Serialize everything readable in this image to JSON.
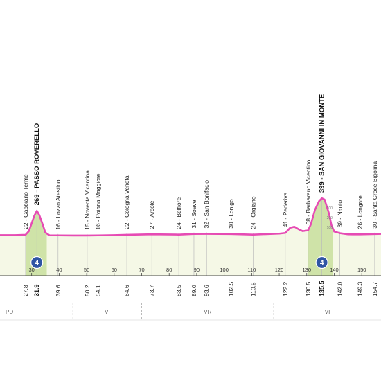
{
  "chart_data": {
    "type": "area",
    "title": "",
    "xlabel": "",
    "ylabel": "",
    "xlim": [
      18.5,
      157
    ],
    "ylim": [
      0,
      420
    ],
    "x_ticks": [
      30,
      40,
      50,
      60,
      70,
      80,
      90,
      100,
      110,
      120,
      130,
      140,
      150
    ],
    "altitude_scale_labels": [
      "300",
      "200",
      "100"
    ],
    "colors": {
      "profile_line": "#e64bb4",
      "area_fill": "#f5f8e6",
      "climb_fill": "#cfe3a8",
      "km_line": "#bbbbbb",
      "climb_badge": "#2f55a4"
    },
    "series": [
      {
        "points": [
          [
            18.5,
            18
          ],
          [
            24,
            18
          ],
          [
            27.8,
            22
          ],
          [
            29,
            60
          ],
          [
            30,
            140
          ],
          [
            31,
            220
          ],
          [
            31.9,
            269
          ],
          [
            32.8,
            225
          ],
          [
            34,
            130
          ],
          [
            35,
            45
          ],
          [
            36.5,
            16
          ],
          [
            39.6,
            16
          ],
          [
            45,
            15
          ],
          [
            50.2,
            15
          ],
          [
            54.1,
            16
          ],
          [
            60,
            18
          ],
          [
            64.6,
            22
          ],
          [
            73.7,
            27
          ],
          [
            83.5,
            24
          ],
          [
            89,
            31
          ],
          [
            93.6,
            32
          ],
          [
            102.5,
            30
          ],
          [
            110.5,
            24
          ],
          [
            116,
            30
          ],
          [
            120,
            34
          ],
          [
            122.2,
            41
          ],
          [
            124,
            95
          ],
          [
            125.5,
            105
          ],
          [
            127,
            80
          ],
          [
            128.5,
            60
          ],
          [
            130.5,
            68
          ],
          [
            131.5,
            130
          ],
          [
            133,
            280
          ],
          [
            134.5,
            370
          ],
          [
            135.5,
            399
          ],
          [
            136.5,
            385
          ],
          [
            138,
            250
          ],
          [
            139,
            120
          ],
          [
            140,
            55
          ],
          [
            142,
            39
          ],
          [
            145,
            27
          ],
          [
            149.3,
            26
          ],
          [
            152,
            28
          ],
          [
            154.7,
            30
          ],
          [
            157,
            32
          ]
        ]
      }
    ],
    "places": [
      {
        "km": 27.8,
        "label": "22 - Gabbiano Terme",
        "climb": false
      },
      {
        "km": 31.9,
        "label": "269 - PASSO ROVERELLO",
        "climb": true
      },
      {
        "km": 39.6,
        "label": "16 - Lozzo Atestino",
        "climb": false
      },
      {
        "km": 50.2,
        "label": "15 - Noventa Vicentina",
        "climb": false
      },
      {
        "km": 54.1,
        "label": "16 - Poiana Maggiore",
        "climb": false
      },
      {
        "km": 64.6,
        "label": "22 - Cologna Veneta",
        "climb": false
      },
      {
        "km": 73.7,
        "label": "27 - Arcole",
        "climb": false
      },
      {
        "km": 83.5,
        "label": "24 - Belfiore",
        "climb": false
      },
      {
        "km": 89.0,
        "label": "31 - Soave",
        "climb": false
      },
      {
        "km": 93.6,
        "label": "32 - San Bonifacio",
        "climb": false
      },
      {
        "km": 102.5,
        "label": "30 - Lonigo",
        "climb": false
      },
      {
        "km": 110.5,
        "label": "24 - Orgiano",
        "climb": false
      },
      {
        "km": 122.2,
        "label": "41 - Pederiva",
        "climb": false
      },
      {
        "km": 130.5,
        "label": "68 - Barbarano Vicentino",
        "climb": false
      },
      {
        "km": 135.5,
        "label": "399 - SAN GIOVANNI IN MONTE",
        "climb": true
      },
      {
        "km": 142.0,
        "label": "39 - Nanto",
        "climb": false
      },
      {
        "km": 149.3,
        "label": "26 - Longare",
        "climb": false
      },
      {
        "km": 154.7,
        "label": "30 - Santa Croce Bigolina",
        "climb": false
      }
    ],
    "distance_labels": [
      {
        "km": 27.8,
        "text": "27.8",
        "bold": false
      },
      {
        "km": 31.9,
        "text": "31.9",
        "bold": true
      },
      {
        "km": 39.6,
        "text": "39.6",
        "bold": false
      },
      {
        "km": 50.2,
        "text": "50.2",
        "bold": false
      },
      {
        "km": 54.1,
        "text": "54.1",
        "bold": false
      },
      {
        "km": 64.6,
        "text": "64.6",
        "bold": false
      },
      {
        "km": 73.7,
        "text": "73.7",
        "bold": false
      },
      {
        "km": 83.5,
        "text": "83.5",
        "bold": false
      },
      {
        "km": 89.0,
        "text": "89.0",
        "bold": false
      },
      {
        "km": 93.6,
        "text": "93.6",
        "bold": false
      },
      {
        "km": 102.5,
        "text": "102.5",
        "bold": false
      },
      {
        "km": 110.5,
        "text": "110.5",
        "bold": false
      },
      {
        "km": 122.2,
        "text": "122.2",
        "bold": false
      },
      {
        "km": 130.5,
        "text": "130.5",
        "bold": false
      },
      {
        "km": 135.5,
        "text": "135.5",
        "bold": true
      },
      {
        "km": 142.0,
        "text": "142.0",
        "bold": false
      },
      {
        "km": 149.3,
        "text": "149.3",
        "bold": false
      },
      {
        "km": 154.7,
        "text": "154.7",
        "bold": false
      }
    ],
    "climb_badges": [
      {
        "km": 31.9,
        "category": "4"
      },
      {
        "km": 135.5,
        "category": "4"
      }
    ],
    "climb_zones": [
      [
        27.8,
        35.5
      ],
      [
        130.5,
        139.5
      ]
    ],
    "provinces": [
      {
        "code": "PD",
        "start": 18.5,
        "end": 45
      },
      {
        "code": "VI",
        "start": 45,
        "end": 70
      },
      {
        "code": "VR",
        "start": 70,
        "end": 118
      },
      {
        "code": "VI",
        "start": 118,
        "end": 157
      }
    ]
  }
}
